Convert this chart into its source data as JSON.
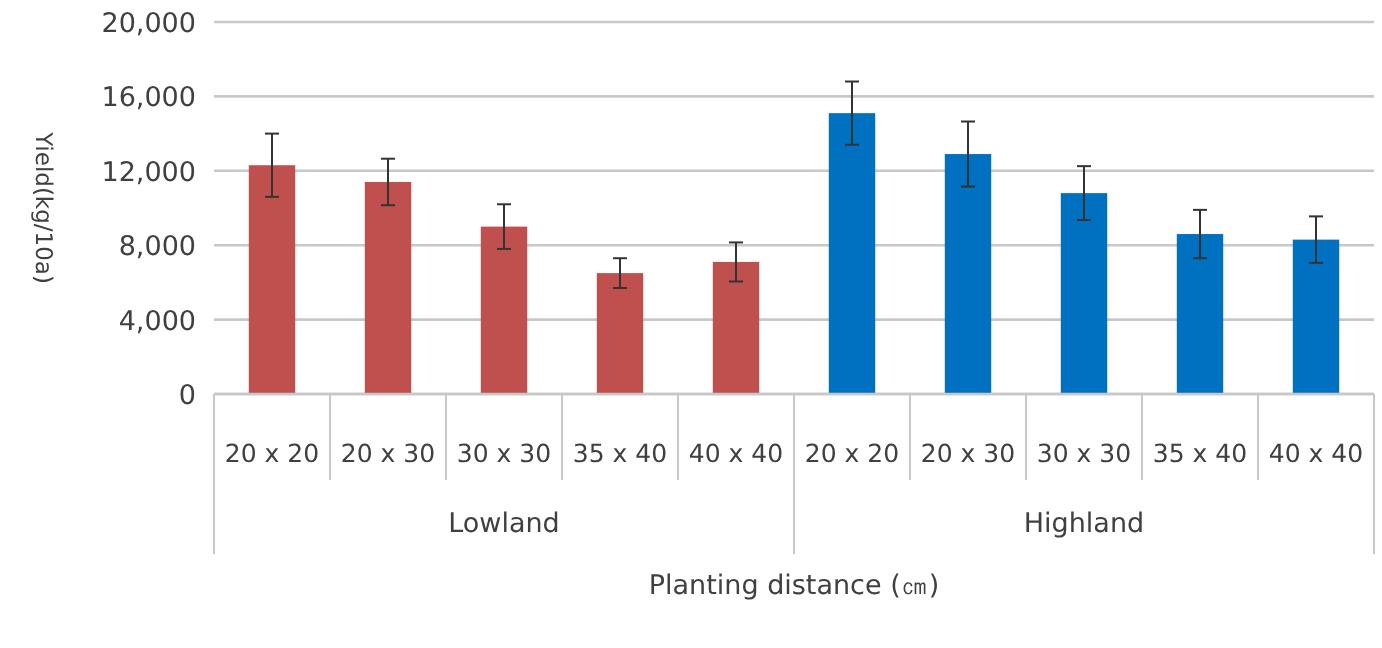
{
  "chart_data": {
    "type": "bar",
    "xlabel": "Planting distance (㎝)",
    "ylabel": "Yield(kg/10a)",
    "categories": [
      "20 x 20",
      "20 x 30",
      "30 x 30",
      "35 x 40",
      "40 x 40",
      "20 x 20",
      "20 x 30",
      "30 x 30",
      "35 x 40",
      "40 x 40"
    ],
    "values": [
      12300,
      11400,
      9000,
      6500,
      7100,
      15100,
      12900,
      10800,
      8600,
      8300
    ],
    "errors": [
      1700,
      1250,
      1200,
      800,
      1050,
      1700,
      1750,
      1450,
      1300,
      1250
    ],
    "colors": [
      "#c0504d",
      "#c0504d",
      "#c0504d",
      "#c0504d",
      "#c0504d",
      "#0070c0",
      "#0070c0",
      "#0070c0",
      "#0070c0",
      "#0070c0"
    ],
    "annotations": [
      "Lowland",
      "Highland"
    ],
    "ylim": [
      0,
      20000
    ],
    "yticks": [
      {
        "value": 0,
        "label": "0"
      },
      {
        "value": 4000,
        "label": "4,000"
      },
      {
        "value": 8000,
        "label": "8,000"
      },
      {
        "value": 12000,
        "label": "12,000"
      },
      {
        "value": 16000,
        "label": "16,000"
      },
      {
        "value": 20000,
        "label": "20,000"
      }
    ],
    "grid": "y",
    "legend": false
  }
}
